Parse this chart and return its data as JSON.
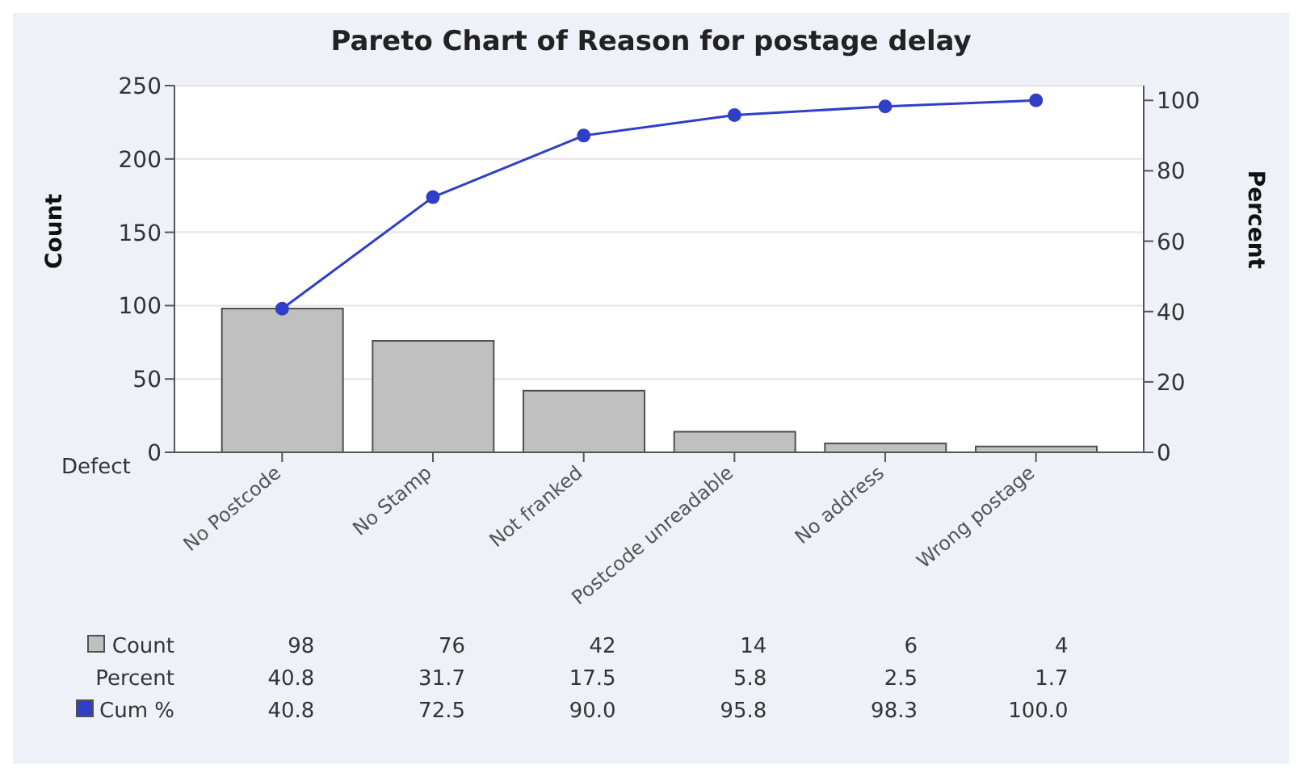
{
  "chart_data": {
    "type": "bar",
    "title": "Pareto Chart of Reason for postage delay",
    "xlabel": "Defect",
    "ylabel": "Count",
    "y2label": "Percent",
    "categories": [
      "No Postcode",
      "No Stamp",
      "Not franked",
      "Postcode unreadable",
      "No address",
      "Wrong postage"
    ],
    "series": [
      {
        "name": "Count",
        "color": "#c0c0c0",
        "values": [
          98,
          76,
          42,
          14,
          6,
          4
        ],
        "value_labels": [
          "98",
          "76",
          "42",
          "14",
          "6",
          "4"
        ]
      },
      {
        "name": "Cum %",
        "type": "line",
        "axis": "y2",
        "color": "#2f3fc8",
        "values": [
          40.8,
          72.5,
          90.0,
          95.8,
          98.3,
          100.0
        ],
        "value_labels": [
          "40.8",
          "72.5",
          "90.0",
          "95.8",
          "98.3",
          "100.0"
        ]
      }
    ],
    "annotations": [
      "Percent",
      "40.8",
      "31.7",
      "17.5",
      "5.8",
      "2.5",
      "1.7"
    ],
    "ylim": [
      0,
      250
    ],
    "yticks": [
      0,
      50,
      100,
      150,
      200,
      250
    ],
    "y2lim": [
      0,
      104.2
    ],
    "y2ticks": [
      0,
      20,
      40,
      60,
      80,
      100
    ],
    "grid": "y",
    "marker": "circle",
    "legend": "bottom left"
  }
}
